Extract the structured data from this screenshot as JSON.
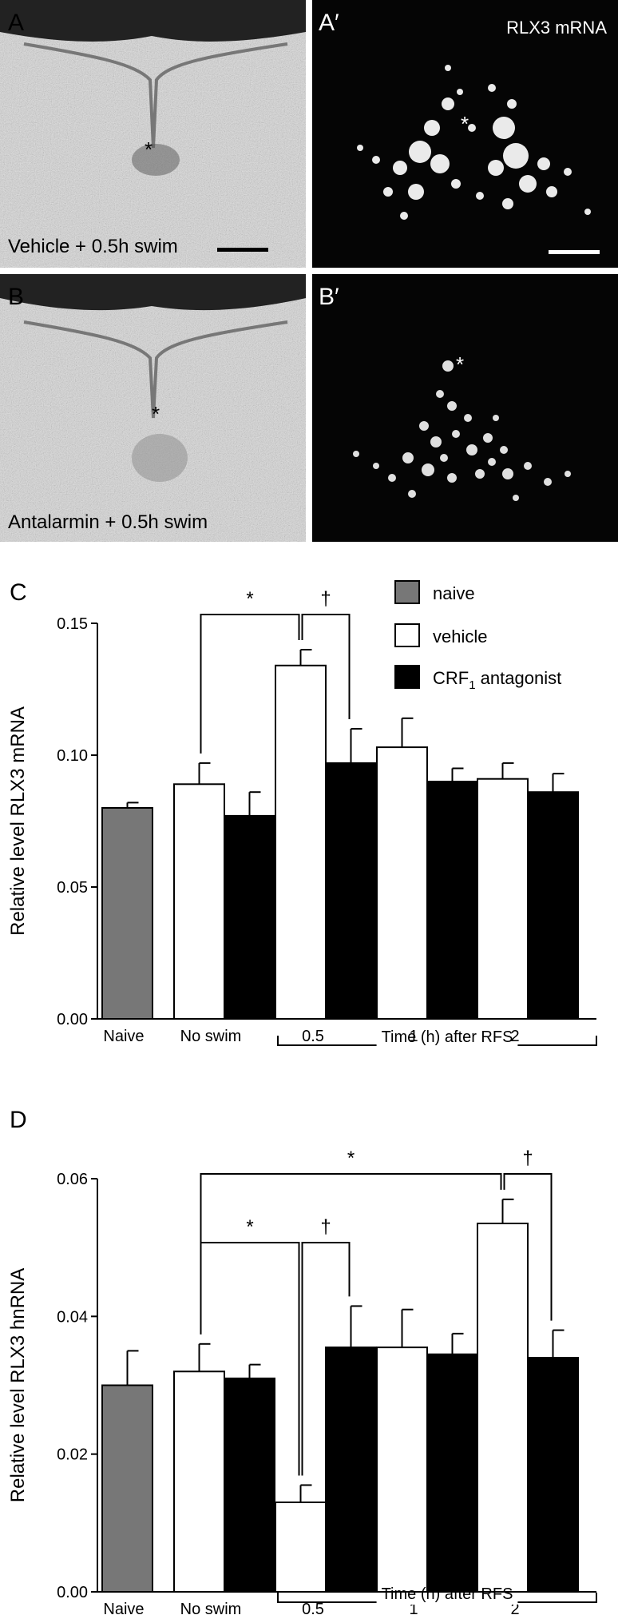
{
  "panels": {
    "A": {
      "label": "A",
      "caption": "Vehicle + 0.5h swim"
    },
    "A_prime": {
      "label": "A′",
      "caption": "RLX3 mRNA"
    },
    "B": {
      "label": "B",
      "caption": "Antalarmin + 0.5h swim"
    },
    "B_prime": {
      "label": "B′"
    }
  },
  "legend": {
    "naive": "naive",
    "vehicle": "vehicle",
    "crf": "CRF",
    "crf_sub": "1",
    "crf_suffix": " antagonist"
  },
  "colors": {
    "naive": "#777777",
    "vehicle": "#ffffff",
    "crf": "#000000"
  },
  "chart_data": [
    {
      "type": "bar",
      "panel": "C",
      "ylabel": "Relative level RLX3 mRNA",
      "ylim": [
        0,
        0.15
      ],
      "yticks": [
        "0.00",
        "0.05",
        "0.10",
        "0.15"
      ],
      "group_labels": [
        "Naive",
        "No swim",
        "0.5",
        "1",
        "2"
      ],
      "bracket_label": "Time (h) after RFS",
      "bars": [
        {
          "group": 0,
          "series": "naive",
          "value": 0.08,
          "error": 0.002
        },
        {
          "group": 1,
          "series": "vehicle",
          "value": 0.089,
          "error": 0.008
        },
        {
          "group": 1,
          "series": "crf",
          "value": 0.077,
          "error": 0.009
        },
        {
          "group": 2,
          "series": "vehicle",
          "value": 0.134,
          "error": 0.006
        },
        {
          "group": 2,
          "series": "crf",
          "value": 0.097,
          "error": 0.013
        },
        {
          "group": 3,
          "series": "vehicle",
          "value": 0.103,
          "error": 0.011
        },
        {
          "group": 3,
          "series": "crf",
          "value": 0.09,
          "error": 0.005
        },
        {
          "group": 4,
          "series": "vehicle",
          "value": 0.091,
          "error": 0.006
        },
        {
          "group": 4,
          "series": "crf",
          "value": 0.086,
          "error": 0.007
        }
      ],
      "significance": [
        {
          "symbol": "*",
          "from": 1,
          "to": 3
        },
        {
          "symbol": "†",
          "from": 3,
          "to": 4
        }
      ]
    },
    {
      "type": "bar",
      "panel": "D",
      "ylabel": "Relative level RLX3 hnRNA",
      "ylim": [
        0,
        0.06
      ],
      "yticks": [
        "0.00",
        "0.02",
        "0.04",
        "0.06"
      ],
      "group_labels": [
        "Naive",
        "No swim",
        "0.5",
        "1",
        "2"
      ],
      "bracket_label": "Time (h) after RFS",
      "bars": [
        {
          "group": 0,
          "series": "naive",
          "value": 0.03,
          "error": 0.005
        },
        {
          "group": 1,
          "series": "vehicle",
          "value": 0.032,
          "error": 0.004
        },
        {
          "group": 1,
          "series": "crf",
          "value": 0.031,
          "error": 0.002
        },
        {
          "group": 2,
          "series": "vehicle",
          "value": 0.013,
          "error": 0.0025
        },
        {
          "group": 2,
          "series": "crf",
          "value": 0.0355,
          "error": 0.006
        },
        {
          "group": 3,
          "series": "vehicle",
          "value": 0.0355,
          "error": 0.0055
        },
        {
          "group": 3,
          "series": "crf",
          "value": 0.0345,
          "error": 0.003
        },
        {
          "group": 4,
          "series": "vehicle",
          "value": 0.0535,
          "error": 0.0035
        },
        {
          "group": 4,
          "series": "crf",
          "value": 0.034,
          "error": 0.004
        }
      ],
      "significance": [
        {
          "symbol": "*",
          "from": 1,
          "to": 3
        },
        {
          "symbol": "†",
          "from": 3,
          "to": 4
        },
        {
          "symbol": "*",
          "from": 1,
          "to": 7
        },
        {
          "symbol": "†",
          "from": 7,
          "to": 8
        }
      ]
    }
  ]
}
